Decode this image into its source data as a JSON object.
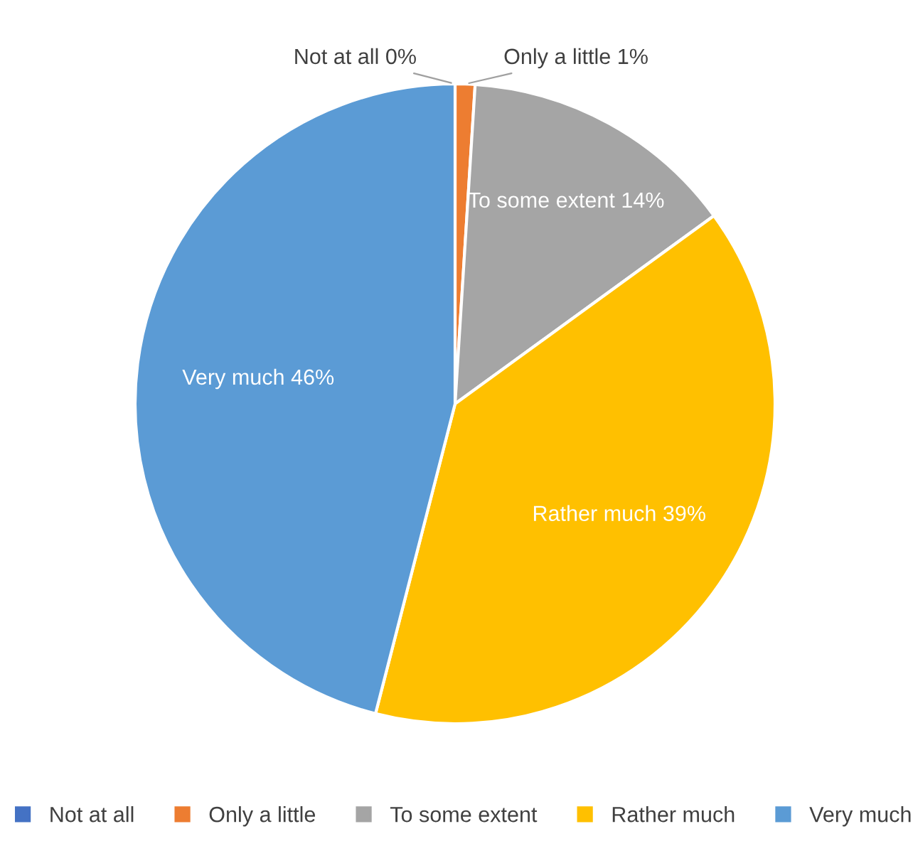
{
  "chart_data": {
    "type": "pie",
    "categories": [
      "Not at all",
      "Only a little",
      "To some extent",
      "Rather much",
      "Very much"
    ],
    "values": [
      0,
      1,
      14,
      39,
      46
    ],
    "colors": [
      "#4472c4",
      "#ed7d31",
      "#a5a5a5",
      "#ffc000",
      "#5b9bd5"
    ],
    "value_labels": [
      "Not at all 0%",
      "Only a little 1%",
      "To some extent 14%",
      "Rather much 39%",
      "Very much 46%"
    ],
    "legend": "bottom"
  }
}
